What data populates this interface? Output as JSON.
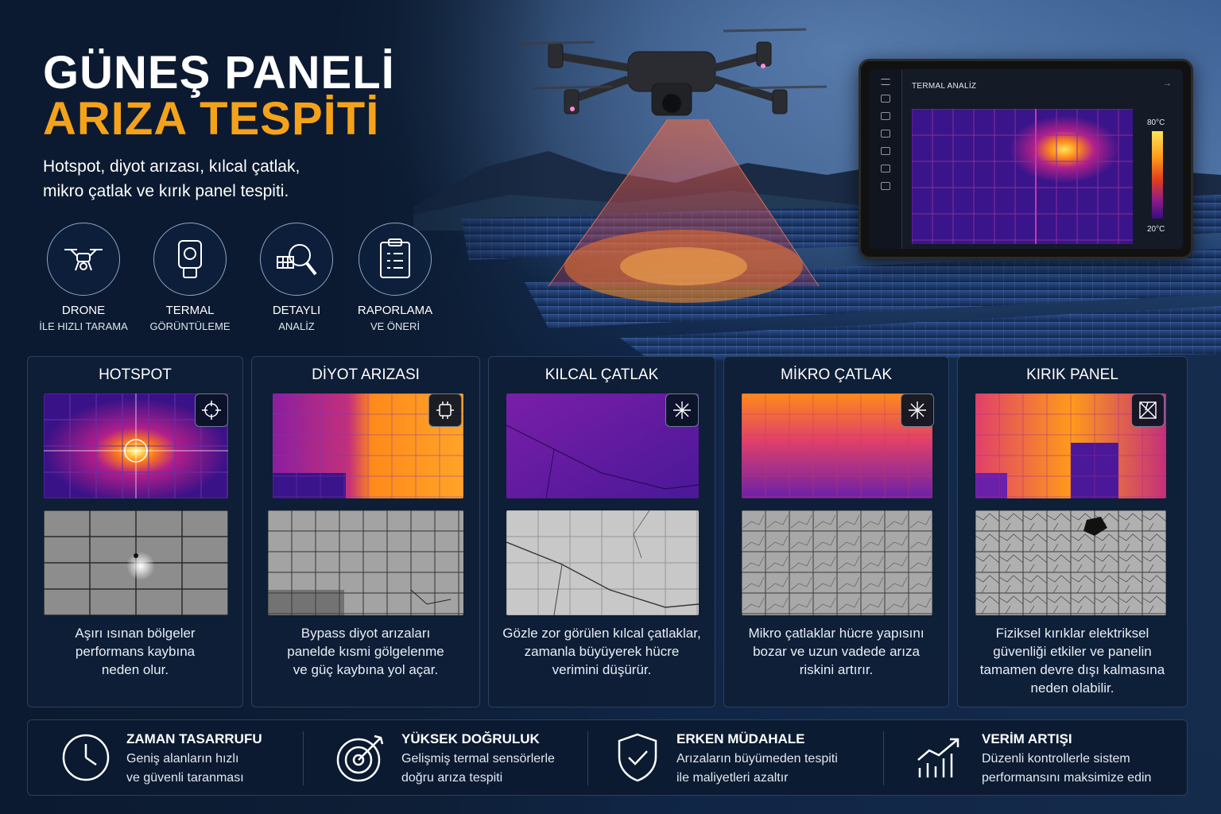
{
  "header": {
    "title_line1": "GÜNEŞ PANELİ",
    "title_line2": "ARIZA TESPİTİ",
    "subtitle_line1": "Hotspot, diyot arızası, kılcal çatlak,",
    "subtitle_line2": "mikro çatlak ve kırık panel tespiti.",
    "accent_color": "#f5a21b"
  },
  "features": [
    {
      "icon": "drone-icon",
      "line1": "DRONE",
      "line2": "İLE HIZLI TARAMA"
    },
    {
      "icon": "thermal-camera-icon",
      "line1": "TERMAL",
      "line2": "GÖRÜNTÜLEME"
    },
    {
      "icon": "magnifier-icon",
      "line1": "DETAYLI",
      "line2": "ANALİZ"
    },
    {
      "icon": "clipboard-icon",
      "line1": "RAPORLAMA",
      "line2": "VE ÖNERİ"
    }
  ],
  "tablet": {
    "title": "TERMAL ANALİZ",
    "scale_max": "80°C",
    "scale_min": "20°C"
  },
  "defects": [
    {
      "title": "HOTSPOT",
      "icon": "crosshair-icon",
      "desc1": "Aşırı ısınan bölgeler",
      "desc2": "performans kaybına",
      "desc3": "neden olur.",
      "desc4": ""
    },
    {
      "title": "DİYOT ARIZASI",
      "icon": "diode-chip-icon",
      "desc1": "Bypass diyot arızaları",
      "desc2": "panelde kısmi gölgelenme",
      "desc3": "ve güç kaybına yol açar.",
      "desc4": ""
    },
    {
      "title": "KILCAL ÇATLAK",
      "icon": "crack-burst-icon",
      "desc1": "Gözle zor görülen kılcal çatlaklar,",
      "desc2": "zamanla büyüyerek hücre",
      "desc3": "verimini düşürür.",
      "desc4": ""
    },
    {
      "title": "MİKRO ÇATLAK",
      "icon": "micro-crack-icon",
      "desc1": "Mikro çatlaklar hücre yapısını",
      "desc2": "bozar ve uzun vadede arıza",
      "desc3": "riskini artırır.",
      "desc4": ""
    },
    {
      "title": "KIRIK PANEL",
      "icon": "broken-panel-icon",
      "desc1": "Fiziksel kırıklar elektriksel",
      "desc2": "güvenliği etkiler ve panelin",
      "desc3": "tamamen devre dışı kalmasına",
      "desc4": "neden olabilir."
    }
  ],
  "benefits": [
    {
      "icon": "clock-icon",
      "title": "ZAMAN TASARRUFU",
      "line1": "Geniş alanların hızlı",
      "line2": "ve güvenli taranması"
    },
    {
      "icon": "target-icon",
      "title": "YÜKSEK DOĞRULUK",
      "line1": "Gelişmiş termal sensörlerle",
      "line2": "doğru arıza tespiti"
    },
    {
      "icon": "shield-check-icon",
      "title": "ERKEN MÜDAHALE",
      "line1": "Arızaların büyümeden tespiti",
      "line2": "ile maliyetleri azaltır"
    },
    {
      "icon": "growth-chart-icon",
      "title": "VERİM ARTIŞI",
      "line1": "Düzenli kontrollerle sistem",
      "line2": "performansını maksimize edin"
    }
  ]
}
